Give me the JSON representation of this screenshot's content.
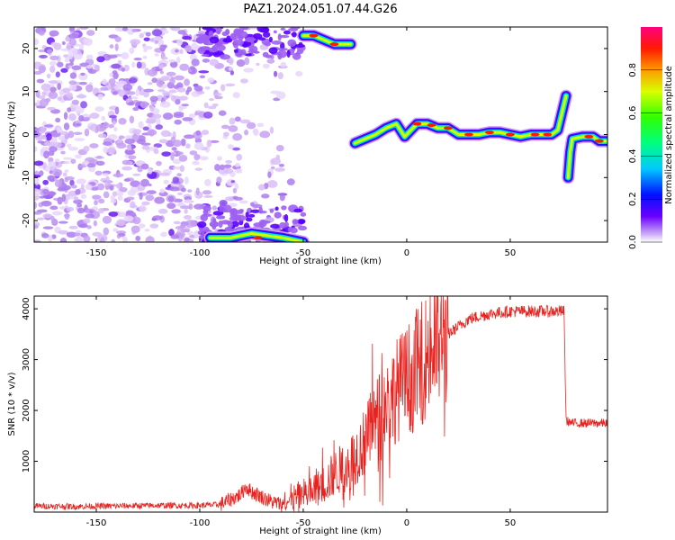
{
  "title": "PAZ1.2024.051.07.44.G26",
  "chart_data": [
    {
      "type": "heatmap",
      "xlabel": "Height of straight line (km)",
      "ylabel": "Frequency (Hz)",
      "xlim": [
        -180,
        97
      ],
      "ylim": [
        -25,
        25
      ],
      "xticks": [
        -150,
        -100,
        -50,
        0,
        50
      ],
      "yticks": [
        -20,
        -10,
        0,
        10,
        20
      ],
      "colorbar": {
        "label": "Normalized spectral amplitude",
        "range": [
          0,
          1
        ],
        "ticks": [
          0.0,
          0.2,
          0.4,
          0.6,
          0.8
        ],
        "colormap": "gist_rainbow_r"
      },
      "ridge": {
        "description_color": "#ff0000",
        "points": [
          [
            -25,
            -2
          ],
          [
            -20,
            -1
          ],
          [
            -15,
            0
          ],
          [
            -10,
            1.5
          ],
          [
            -5,
            2.5
          ],
          [
            -3,
            1
          ],
          [
            -1,
            -0.5
          ],
          [
            2,
            1
          ],
          [
            5,
            2.5
          ],
          [
            10,
            2.5
          ],
          [
            15,
            1.5
          ],
          [
            20,
            1.5
          ],
          [
            25,
            0
          ],
          [
            35,
            0
          ],
          [
            40,
            0.5
          ],
          [
            45,
            0.5
          ],
          [
            50,
            0
          ],
          [
            55,
            -0.5
          ],
          [
            60,
            0
          ],
          [
            65,
            0
          ],
          [
            70,
            0
          ],
          [
            73,
            1
          ],
          [
            75,
            5
          ],
          [
            77,
            9
          ]
        ],
        "points2": [
          [
            78,
            -10
          ],
          [
            79,
            -4
          ],
          [
            80,
            -1
          ],
          [
            85,
            -0.5
          ],
          [
            90,
            -0.5
          ],
          [
            93,
            -1.5
          ],
          [
            97,
            -1.5
          ]
        ],
        "top_left_blob": [
          [
            -50,
            23
          ],
          [
            -45,
            23
          ],
          [
            -40,
            22
          ],
          [
            -35,
            21
          ],
          [
            -30,
            21
          ],
          [
            -27,
            21
          ]
        ],
        "bottom_blob": [
          [
            -95,
            -24
          ],
          [
            -85,
            -24
          ],
          [
            -75,
            -23
          ],
          [
            -60,
            -24
          ],
          [
            -50,
            -25
          ]
        ]
      }
    },
    {
      "type": "line",
      "xlabel": "Height of straight line (km)",
      "ylabel": "SNR (10 * v/v)",
      "xlim": [
        -180,
        97
      ],
      "ylim": [
        0,
        4250
      ],
      "xticks": [
        -150,
        -100,
        -50,
        0,
        50
      ],
      "yticks": [
        1000,
        2000,
        3000,
        4000
      ],
      "color": "#e8231f",
      "envelope": [
        [
          -180,
          120
        ],
        [
          -160,
          110
        ],
        [
          -140,
          120
        ],
        [
          -120,
          130
        ],
        [
          -100,
          130
        ],
        [
          -90,
          150
        ],
        [
          -85,
          250
        ],
        [
          -80,
          350
        ],
        [
          -78,
          500
        ],
        [
          -75,
          400
        ],
        [
          -70,
          300
        ],
        [
          -65,
          200
        ],
        [
          -60,
          150
        ],
        [
          -55,
          250
        ],
        [
          -50,
          350
        ],
        [
          -45,
          400
        ],
        [
          -40,
          550
        ],
        [
          -35,
          750
        ],
        [
          -30,
          900
        ],
        [
          -25,
          1100
        ],
        [
          -20,
          1400
        ],
        [
          -15,
          1800
        ],
        [
          -10,
          2100
        ],
        [
          -5,
          2400
        ],
        [
          0,
          2600
        ],
        [
          5,
          2800
        ],
        [
          10,
          3100
        ],
        [
          15,
          3300
        ],
        [
          20,
          3500
        ],
        [
          25,
          3650
        ],
        [
          30,
          3800
        ],
        [
          40,
          3900
        ],
        [
          50,
          3950
        ],
        [
          60,
          3950
        ],
        [
          70,
          3950
        ],
        [
          76,
          3950
        ],
        [
          77,
          1800
        ],
        [
          80,
          1750
        ],
        [
          90,
          1750
        ],
        [
          97,
          1750
        ]
      ]
    }
  ]
}
